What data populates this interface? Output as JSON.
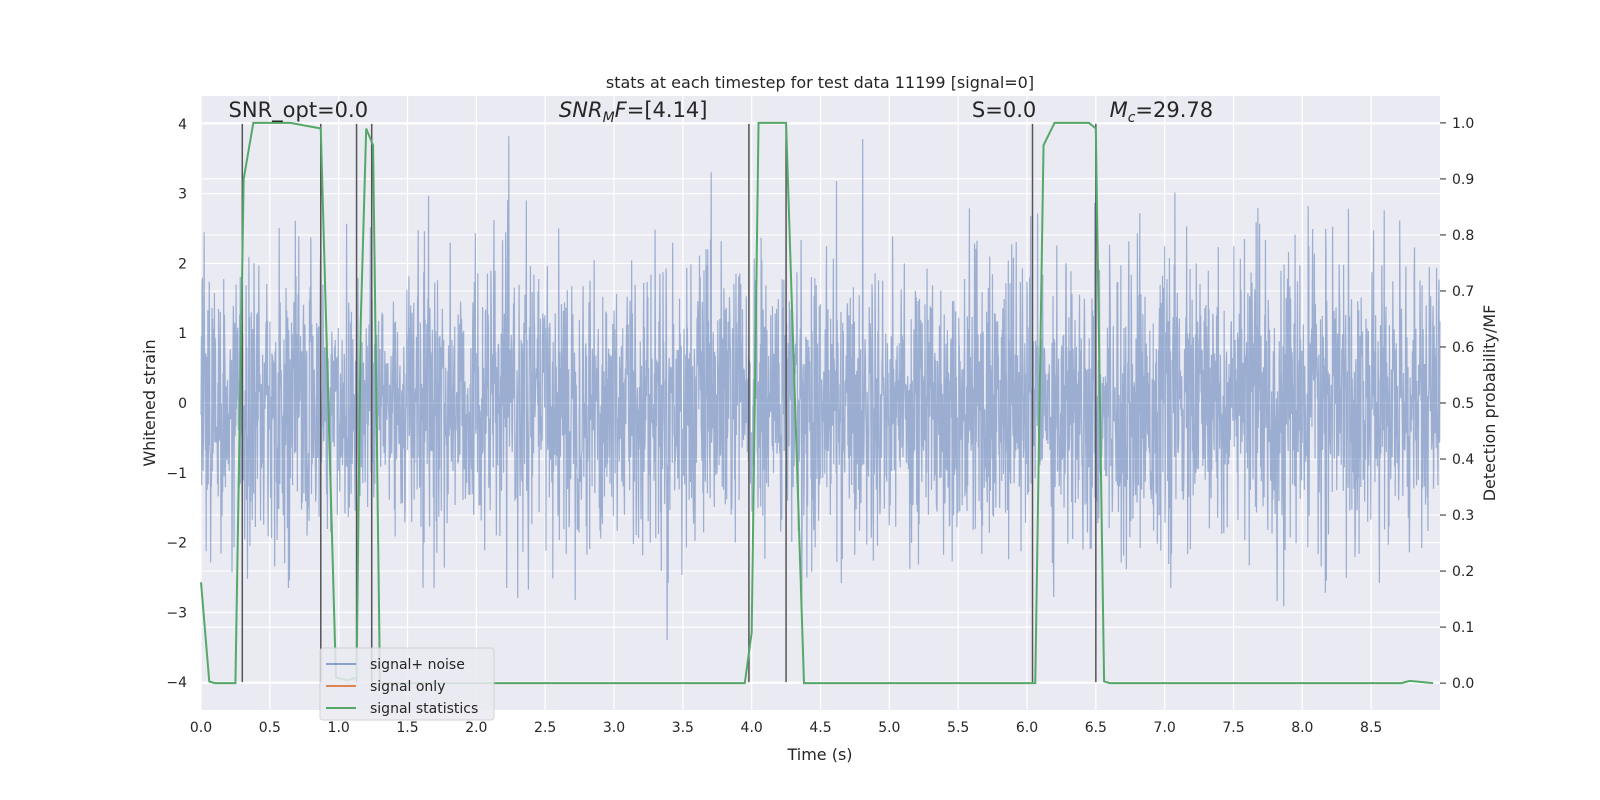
{
  "chart_data": {
    "type": "line",
    "title": "stats at each timestep for test data 11199 [signal=0]",
    "xlabel": "Time (s)",
    "ylabel": "Whitened strain",
    "y2label": "Detection probability/MF",
    "xlim": [
      0.0,
      9.0
    ],
    "ylim": [
      -4.4,
      4.4
    ],
    "y2lim": [
      -0.048,
      1.048
    ],
    "xticks": [
      0.0,
      0.5,
      1.0,
      1.5,
      2.0,
      2.5,
      3.0,
      3.5,
      4.0,
      4.5,
      5.0,
      5.5,
      6.0,
      6.5,
      7.0,
      7.5,
      8.0,
      8.5
    ],
    "xtick_labels": [
      "0.0",
      "0.5",
      "1.0",
      "1.5",
      "2.0",
      "2.5",
      "3.0",
      "3.5",
      "4.0",
      "4.5",
      "5.0",
      "5.5",
      "6.0",
      "6.5",
      "7.0",
      "7.5",
      "8.0",
      "8.5"
    ],
    "yticks": [
      -4,
      -3,
      -2,
      -1,
      0,
      1,
      2,
      3,
      4
    ],
    "ytick_labels": [
      "−4",
      "−3",
      "−2",
      "−1",
      "0",
      "1",
      "2",
      "3",
      "4"
    ],
    "y2ticks": [
      0.0,
      0.1,
      0.2,
      0.3,
      0.4,
      0.5,
      0.6,
      0.7,
      0.8,
      0.9,
      1.0
    ],
    "y2tick_labels": [
      "0.0",
      "0.1",
      "0.2",
      "0.3",
      "0.4",
      "0.5",
      "0.6",
      "0.7",
      "0.8",
      "0.9",
      "1.0"
    ],
    "grid": true,
    "legend_position": "lower-left",
    "annotations": [
      {
        "text": "SNR_opt=0.0",
        "x": 0.2,
        "y": 4.1
      },
      {
        "text": "SNR_MF=[4.14]",
        "x": 2.6,
        "y": 4.1
      },
      {
        "text": "S=0.0",
        "x": 5.6,
        "y": 4.1
      },
      {
        "text": "M_c=29.78",
        "x": 6.6,
        "y": 4.1
      }
    ],
    "series": [
      {
        "name": "signal+ noise",
        "color": "#4c72b0",
        "kind": "noise",
        "amplitude_std": 1.0,
        "x_range": [
          0.0,
          9.0
        ]
      },
      {
        "name": "signal only",
        "color": "#dd8452",
        "x": [],
        "y": []
      },
      {
        "name": "signal statistics",
        "color": "#55a868",
        "axis": "right",
        "x": [
          0.0,
          0.06,
          0.1,
          0.25,
          0.31,
          0.38,
          0.65,
          0.87,
          0.98,
          1.06,
          1.13,
          1.16,
          1.2,
          1.25,
          1.3,
          1.36,
          1.4,
          3.95,
          4.0,
          4.05,
          4.25,
          4.38,
          4.42,
          6.06,
          6.12,
          6.2,
          6.45,
          6.5,
          6.56,
          6.6,
          8.72,
          8.78,
          8.95
        ],
        "y": [
          0.18,
          0.003,
          0.0,
          0.0,
          0.9,
          1.0,
          1.0,
          0.99,
          0.01,
          0.005,
          0.01,
          0.64,
          0.99,
          0.96,
          0.0,
          0.0,
          0.0,
          0.0,
          0.09,
          1.0,
          1.0,
          0.0,
          0.0,
          0.0,
          0.96,
          1.0,
          1.0,
          0.99,
          0.003,
          0.0,
          0.0,
          0.004,
          0.0
        ]
      }
    ],
    "vlines": [
      0.3,
      0.87,
      1.13,
      1.24,
      3.98,
      4.25,
      6.04,
      6.5
    ],
    "vline_color": "#555555",
    "vline_ymin": 4.0,
    "vline_ymax": -4.0
  }
}
